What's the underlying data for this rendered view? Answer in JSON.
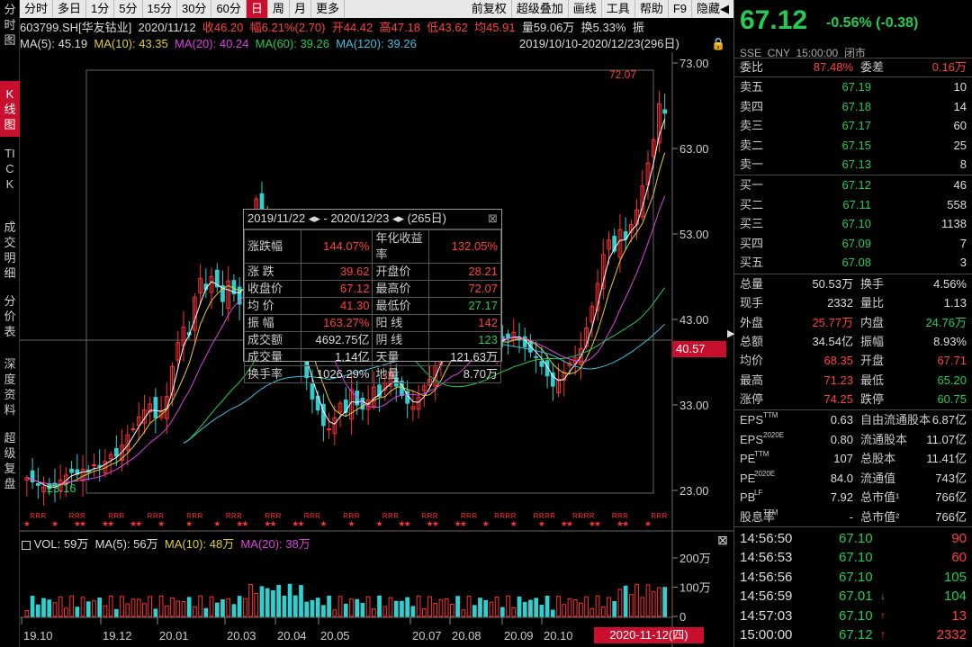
{
  "left_tabs": [
    "分时图",
    "K线图",
    "TICK",
    "成交明细",
    "分价表",
    "深度资料",
    "超级复盘"
  ],
  "toolbar": {
    "periods": [
      "分时",
      "多日",
      "1分",
      "5分",
      "15分",
      "30分",
      "60分",
      "日",
      "周",
      "月",
      "更多"
    ],
    "active_period": "日",
    "actions": [
      "前复权",
      "超级叠加",
      "画线",
      "工具",
      "帮助"
    ],
    "f9": "F9",
    "hide": "隐藏◀"
  },
  "info": {
    "code": "603799.SH[华友钴业]",
    "date": "2020/11/12",
    "close": "收46.20",
    "change": "幅6.21%(2.70)",
    "open": "开44.42",
    "high": "高47.18",
    "low": "低43.62",
    "avg": "均45.91",
    "vol": "量59.06万",
    "turnover": "换5.33%",
    "amp": "振"
  },
  "ma_line": {
    "ma5": "MA(5): 45.19",
    "ma10": "MA(10): 43.35",
    "ma20": "MA(20): 40.24",
    "ma60": "MA(60): 39.26",
    "ma120": "MA(120): 39.26",
    "range": "2019/10/10-2020/12/23(296日)"
  },
  "chart_data": {
    "type": "candlestick",
    "y_ticks": [
      "73.00",
      "63.00",
      "53.00",
      "43.00",
      "33.00",
      "23.00"
    ],
    "ylim": [
      23,
      73
    ],
    "x_ticks": [
      "19.10",
      "19.12",
      "20.01",
      "20.03",
      "20.04",
      "20.05",
      "20.07",
      "20.08",
      "20.09",
      "20.10"
    ],
    "annotations": {
      "low": "23.16",
      "high": "72.07",
      "price_tag": "40.57",
      "date_tag": "2020-11-12(四)"
    },
    "closes": [
      24.5,
      24.0,
      23.6,
      23.4,
      23.2,
      23.5,
      24.2,
      24.8,
      25.1,
      24.9,
      25.5,
      25.2,
      26.0,
      25.8,
      26.4,
      27.2,
      27.0,
      28.3,
      29.5,
      30.2,
      31.6,
      32.4,
      33.1,
      31.5,
      32.2,
      34.0,
      37.5,
      40.3,
      42.1,
      41.2,
      45.6,
      47.8,
      46.5,
      48.0,
      46.8,
      45.1,
      47.5,
      46.0,
      44.8,
      49.5,
      53.2,
      57.1,
      55.0,
      52.4,
      50.0,
      48.3,
      45.0,
      41.2,
      40.6,
      38.5,
      36.2,
      33.7,
      32.4,
      30.6,
      30.2,
      31.5,
      33.2,
      32.1,
      34.8,
      33.0,
      32.5,
      33.6,
      35.1,
      34.0,
      35.6,
      36.8,
      35.2,
      34.1,
      33.2,
      32.8,
      33.9,
      35.2,
      36.0,
      37.6,
      39.8,
      40.5,
      41.3,
      40.0,
      41.8,
      42.5,
      41.0,
      40.2,
      39.5,
      40.1,
      41.0,
      40.5,
      40.8,
      41.5,
      40.6,
      39.8,
      39.2,
      38.6,
      37.5,
      36.4,
      35.2,
      36.0,
      36.8,
      37.9,
      38.5,
      39.6,
      42.0,
      44.5,
      47.2,
      50.6,
      52.3,
      51.0,
      53.5,
      52.4,
      54.1,
      55.8,
      58.6,
      61.3,
      64.0,
      68.2,
      67.12
    ],
    "volume": {
      "label": "VOL: 59万",
      "ma5": "MA(5): 56万",
      "ma10": "MA(10): 48万",
      "ma20": "MA(20): 38万",
      "y_ticks": [
        "200万",
        "100万",
        "0"
      ]
    }
  },
  "quote": {
    "price": "67.12",
    "change": "-0.56% (-0.38)",
    "sub": "SSE  CNY  15:00:00  闭市",
    "webi_label": "委比",
    "webi": "87.48%",
    "wecha_label": "委差",
    "wecha": "0.16万",
    "asks": [
      {
        "label": "卖五",
        "price": "67.19",
        "vol": "10"
      },
      {
        "label": "卖四",
        "price": "67.18",
        "vol": "14"
      },
      {
        "label": "卖三",
        "price": "67.17",
        "vol": "60"
      },
      {
        "label": "卖二",
        "price": "67.15",
        "vol": "25"
      },
      {
        "label": "卖一",
        "price": "67.13",
        "vol": "8"
      }
    ],
    "bids": [
      {
        "label": "买一",
        "price": "67.12",
        "vol": "46"
      },
      {
        "label": "买二",
        "price": "67.11",
        "vol": "558"
      },
      {
        "label": "买三",
        "price": "67.10",
        "vol": "1138"
      },
      {
        "label": "买四",
        "price": "67.09",
        "vol": "7"
      },
      {
        "label": "买五",
        "price": "67.08",
        "vol": "3"
      }
    ],
    "stats": [
      {
        "l1": "总量",
        "v1": "50.53万",
        "c1": "white",
        "l2": "换手",
        "v2": "4.56%",
        "c2": "white"
      },
      {
        "l1": "现手",
        "v1": "2332",
        "c1": "white",
        "l2": "量比",
        "v2": "1.13",
        "c2": "white"
      },
      {
        "l1": "外盘",
        "v1": "25.77万",
        "c1": "red",
        "l2": "内盘",
        "v2": "24.76万",
        "c2": "green"
      },
      {
        "l1": "总额",
        "v1": "34.54亿",
        "c1": "white",
        "l2": "振幅",
        "v2": "8.93%",
        "c2": "white"
      },
      {
        "l1": "均价",
        "v1": "68.35",
        "c1": "red",
        "l2": "开盘",
        "v2": "67.71",
        "c2": "red"
      },
      {
        "l1": "最高",
        "v1": "71.23",
        "c1": "red",
        "l2": "最低",
        "v2": "65.20",
        "c2": "green"
      },
      {
        "l1": "涨停",
        "v1": "74.25",
        "c1": "red",
        "l2": "跌停",
        "v2": "60.75",
        "c2": "green"
      }
    ],
    "fund": [
      {
        "l1": "EPS",
        "s1": "TTM",
        "v1": "0.63",
        "l2": "自由流通股本",
        "v2": "6.87亿"
      },
      {
        "l1": "EPS",
        "s1": "2020E",
        "v1": "0.80",
        "l2": "流通股本",
        "v2": "11.07亿"
      },
      {
        "l1": "PE",
        "s1": "TTM",
        "v1": "107",
        "l2": "总股本",
        "v2": "11.41亿"
      },
      {
        "l1": "PE",
        "s1": "2020E",
        "v1": "84.0",
        "l2": "流通值",
        "v2": "743亿"
      },
      {
        "l1": "PB",
        "s1": "LF",
        "v1": "7.92",
        "l2": "总市值¹",
        "v2": "766亿"
      },
      {
        "l1": "股息率",
        "s1": "TTM",
        "v1": "-",
        "l2": "总市值²",
        "v2": "766亿"
      }
    ],
    "ticks": [
      {
        "time": "14:56:50",
        "price": "67.10",
        "arrow": "",
        "vol": "90",
        "vc": "red"
      },
      {
        "time": "14:56:53",
        "price": "67.10",
        "arrow": "",
        "vol": "60",
        "vc": "red"
      },
      {
        "time": "14:56:56",
        "price": "67.10",
        "arrow": "",
        "vol": "105",
        "vc": "green"
      },
      {
        "time": "14:56:59",
        "price": "67.01",
        "arrow": "↓",
        "vol": "104",
        "vc": "green"
      },
      {
        "time": "14:57:03",
        "price": "67.10",
        "arrow": "↑",
        "vol": "13",
        "vc": "red"
      },
      {
        "time": "15:00:00",
        "price": "67.12",
        "arrow": "↑",
        "vol": "2332",
        "vc": "red"
      }
    ]
  },
  "tooltip": {
    "header": "2019/11/22 ◂▸ - 2020/12/23 ◂▸  (265日)",
    "rows": [
      [
        "涨跌幅",
        "144.07%",
        "年化收益率",
        "132.05%"
      ],
      [
        "涨  跌",
        "39.62",
        "开盘价",
        "28.21"
      ],
      [
        "收盘价",
        "67.12",
        "最高价",
        "72.07"
      ],
      [
        "均  价",
        "41.30",
        "最低价",
        "27.17"
      ],
      [
        "振  幅",
        "163.27%",
        "阳  线",
        "142"
      ],
      [
        "成交额",
        "4692.75亿",
        "阴  线",
        "123"
      ],
      [
        "成交量",
        "1.14亿",
        "天量",
        "121.63万"
      ],
      [
        "换手率",
        "1026.29%",
        "地量",
        "8.70万"
      ]
    ]
  }
}
